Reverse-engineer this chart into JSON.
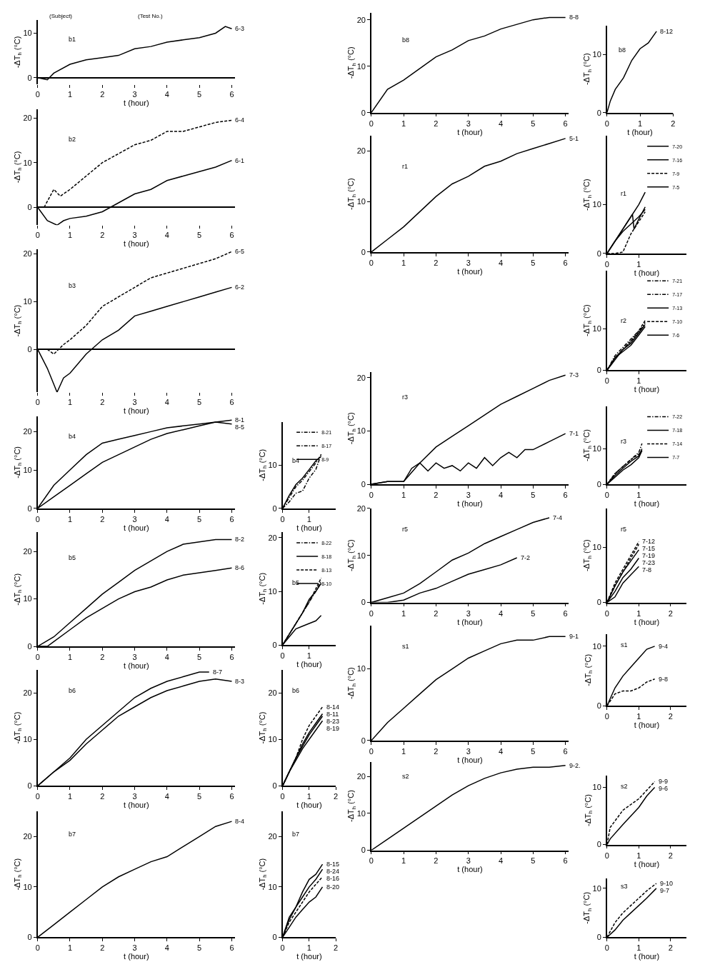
{
  "chart_data": [
    {
      "type": "line",
      "title": "b1",
      "annotations": [
        "(Subject)",
        "(Test No.)"
      ],
      "xlabel": "t (hour)",
      "ylabel": "-ΔT$_{h}$ (°C)",
      "xlim": [
        0,
        6.1
      ],
      "xticks": [
        0,
        1,
        2,
        3,
        4,
        5,
        6
      ],
      "ylim": [
        -1.5,
        13
      ],
      "yticks": [
        0,
        10
      ],
      "series": [
        {
          "name": "6-3",
          "color": "#000000",
          "line_style": "solid",
          "x": [
            0,
            0.3,
            0.5,
            1,
            1.5,
            2,
            2.5,
            3,
            3.5,
            4,
            4.5,
            5,
            5.5,
            5.8,
            6
          ],
          "values": [
            0,
            -0.5,
            1,
            3,
            4,
            4.5,
            5,
            6.5,
            7,
            8,
            8.5,
            9,
            10,
            11.5,
            11
          ]
        }
      ]
    },
    {
      "type": "line",
      "title": "b2",
      "xlabel": "t (hour)",
      "ylabel": "-ΔT$_{h}$ (°C)",
      "xlim": [
        0,
        6.1
      ],
      "xticks": [
        0,
        1,
        2,
        3,
        4,
        5,
        6
      ],
      "ylim": [
        -4,
        22
      ],
      "yticks": [
        0,
        10,
        20
      ],
      "series": [
        {
          "name": "6-4",
          "color": "#000000",
          "line_style": "dashed",
          "x": [
            0.2,
            0.5,
            0.7,
            1,
            1.5,
            2,
            2.5,
            3,
            3.5,
            4,
            4.5,
            5,
            5.5,
            6
          ],
          "values": [
            0,
            4,
            2.5,
            4,
            7,
            10,
            12,
            14,
            15,
            17,
            17,
            18,
            19,
            19.5
          ]
        },
        {
          "name": "6-1",
          "color": "#000000",
          "line_style": "solid",
          "x": [
            0,
            0.3,
            0.6,
            0.8,
            1,
            1.5,
            2,
            2.5,
            3,
            3.5,
            4,
            4.5,
            5,
            5.5,
            6
          ],
          "values": [
            0,
            -3,
            -4,
            -3,
            -2.5,
            -2,
            -1,
            1,
            3,
            4,
            6,
            7,
            8,
            9,
            10.5
          ]
        }
      ]
    },
    {
      "type": "line",
      "title": "b3",
      "xlabel": "t (hour)",
      "ylabel": "-ΔT$_{h}$ (°C)",
      "xlim": [
        0,
        6.1
      ],
      "xticks": [
        0,
        1,
        2,
        3,
        4,
        5,
        6
      ],
      "ylim": [
        -9,
        21
      ],
      "yticks": [
        0,
        10,
        20
      ],
      "series": [
        {
          "name": "6-5",
          "color": "#000000",
          "line_style": "dashed",
          "x": [
            0.3,
            0.5,
            0.8,
            1,
            1.5,
            2,
            2.5,
            3,
            3.5,
            4,
            4.5,
            5,
            5.5,
            6
          ],
          "values": [
            0,
            -1,
            1,
            2,
            5,
            9,
            11,
            13,
            15,
            16,
            17,
            18,
            19,
            20.5
          ]
        },
        {
          "name": "6-2",
          "color": "#000000",
          "line_style": "solid",
          "x": [
            0,
            0.3,
            0.6,
            0.8,
            1,
            1.5,
            2,
            2.5,
            3,
            3.5,
            4,
            4.5,
            5,
            5.5,
            6
          ],
          "values": [
            0,
            -4,
            -9,
            -6,
            -5,
            -1,
            2,
            4,
            7,
            8,
            9,
            10,
            11,
            12,
            13
          ]
        }
      ]
    },
    {
      "type": "line",
      "title": "b4",
      "xlabel": "t (hour)",
      "ylabel": "-ΔT$_{h}$ (°C)",
      "xlim": [
        0,
        6.1
      ],
      "xticks": [
        0,
        1,
        2,
        3,
        4,
        5,
        6
      ],
      "ylim": [
        0,
        24
      ],
      "yticks": [
        0,
        10,
        20
      ],
      "series": [
        {
          "name": "8-5",
          "color": "#000000",
          "line_style": "solid",
          "x": [
            0,
            0.5,
            1,
            1.5,
            2,
            2.5,
            3,
            3.5,
            4,
            4.5,
            5,
            5.5,
            6
          ],
          "values": [
            0,
            6,
            10,
            14,
            17,
            18,
            19,
            20,
            21,
            21.5,
            22,
            22.5,
            22
          ]
        },
        {
          "name": "8-1",
          "color": "#000000",
          "line_style": "solid",
          "x": [
            0,
            0.5,
            1,
            1.5,
            2,
            2.5,
            3,
            3.5,
            4,
            4.5,
            5,
            5.5,
            6
          ],
          "values": [
            0,
            3,
            6,
            9,
            12,
            14,
            16,
            18,
            19.5,
            20.5,
            21.5,
            22.5,
            23
          ]
        }
      ]
    },
    {
      "type": "line",
      "title": "b5",
      "xlabel": "t (hour)",
      "ylabel": "-ΔT$_{h}$ (°C)",
      "xlim": [
        0,
        6.1
      ],
      "xticks": [
        0,
        1,
        2,
        3,
        4,
        5,
        6
      ],
      "ylim": [
        0,
        24
      ],
      "yticks": [
        0,
        10,
        20
      ],
      "series": [
        {
          "name": "8-2",
          "color": "#000000",
          "line_style": "solid",
          "x": [
            0,
            0.5,
            1,
            1.5,
            2,
            2.5,
            3,
            3.5,
            4,
            4.5,
            5,
            5.5,
            6
          ],
          "values": [
            0,
            2,
            5,
            8,
            11,
            13.5,
            16,
            18,
            20,
            21.5,
            22,
            22.5,
            22.5
          ]
        },
        {
          "name": "8-6",
          "color": "#000000",
          "line_style": "solid",
          "x": [
            0,
            0.3,
            0.5,
            1,
            1.5,
            2,
            2.5,
            3,
            3.5,
            4,
            4.5,
            5,
            5.5,
            6
          ],
          "values": [
            0,
            0,
            1,
            3.5,
            6,
            8,
            10,
            11.5,
            12.5,
            14,
            15,
            15.5,
            16,
            16.5
          ]
        }
      ]
    },
    {
      "type": "line",
      "title": "b6",
      "xlabel": "t (hour)",
      "ylabel": "-ΔT$_{h}$ (°C)",
      "xlim": [
        0,
        6.1
      ],
      "xticks": [
        0,
        1,
        2,
        3,
        4,
        5,
        6
      ],
      "ylim": [
        0,
        25
      ],
      "yticks": [
        0,
        10,
        20
      ],
      "series": [
        {
          "name": "8-7",
          "color": "#000000",
          "line_style": "solid",
          "x": [
            0,
            0.5,
            1,
            1.5,
            2,
            2.5,
            3,
            3.5,
            4,
            4.5,
            5,
            5.3
          ],
          "values": [
            0,
            3,
            6,
            10,
            13,
            16,
            19,
            21,
            22.5,
            23.5,
            24.5,
            24.5
          ]
        },
        {
          "name": "8-3",
          "color": "#000000",
          "line_style": "solid",
          "x": [
            0,
            0.5,
            1,
            1.5,
            2,
            2.5,
            3,
            3.5,
            4,
            4.5,
            5,
            5.5,
            6
          ],
          "values": [
            0,
            3,
            5.5,
            9,
            12,
            15,
            17,
            19,
            20.5,
            21.5,
            22.5,
            23,
            22.5
          ]
        }
      ]
    },
    {
      "type": "line",
      "title": "b7",
      "xlabel": "t (hour)",
      "ylabel": "-ΔT$_{h}$ (°C)",
      "xlim": [
        0,
        6.1
      ],
      "xticks": [
        0,
        1,
        2,
        3,
        4,
        5,
        6
      ],
      "ylim": [
        0,
        25
      ],
      "yticks": [
        0,
        10,
        20
      ],
      "series": [
        {
          "name": "8-4",
          "color": "#000000",
          "line_style": "solid",
          "x": [
            0,
            0.5,
            1,
            1.5,
            2,
            2.5,
            3,
            3.5,
            4,
            4.5,
            5,
            5.5,
            6
          ],
          "values": [
            0,
            2.5,
            5,
            7.5,
            10,
            12,
            13.5,
            15,
            16,
            18,
            20,
            22,
            23
          ]
        }
      ]
    },
    {
      "type": "line",
      "title": "b4",
      "xlabel": "t (hour)",
      "ylabel": "-ΔT$_{h}$ (°C)",
      "xlim": [
        0,
        2
      ],
      "xticks": [
        0,
        1
      ],
      "ylim": [
        0,
        20
      ],
      "yticks": [
        0,
        10
      ],
      "legend": "top right",
      "series": [
        {
          "name": "8-21",
          "color": "#000000",
          "line_style": "dashdot",
          "x": [
            0,
            0.25,
            0.5,
            0.75,
            1,
            1.25,
            1.45
          ],
          "values": [
            0,
            1.5,
            3.5,
            4,
            7,
            9,
            12.5
          ]
        },
        {
          "name": "8-17",
          "color": "#000000",
          "line_style": "dashdot",
          "x": [
            0,
            0.25,
            0.5,
            0.75,
            1,
            1.25,
            1.45
          ],
          "values": [
            0,
            2.5,
            5,
            6.5,
            8.5,
            10.5,
            12.5
          ]
        },
        {
          "name": "8-9",
          "color": "#000000",
          "line_style": "solid",
          "x": [
            0,
            0.25,
            0.5,
            0.75,
            1,
            1.25,
            1.45
          ],
          "values": [
            0,
            3,
            5.5,
            7,
            9,
            11,
            12
          ]
        }
      ]
    },
    {
      "type": "line",
      "title": "b5",
      "xlabel": "t (hour)",
      "ylabel": "-ΔT$_{h}$ (°C)",
      "xlim": [
        0,
        2
      ],
      "xticks": [
        0,
        1
      ],
      "ylim": [
        0,
        21
      ],
      "yticks": [
        0,
        10,
        20
      ],
      "legend": "top right",
      "series": [
        {
          "name": "8-22",
          "color": "#000000",
          "line_style": "dashdot",
          "x": [
            0,
            0.25,
            0.5,
            0.75,
            1,
            1.25,
            1.45
          ],
          "values": [
            0,
            2,
            4,
            6,
            8,
            10,
            12
          ]
        },
        {
          "name": "8-18",
          "color": "#000000",
          "line_style": "solid",
          "x": [
            0,
            0.25,
            0.5,
            0.75,
            1,
            1.25,
            1.45
          ],
          "values": [
            0,
            2,
            4,
            6,
            8.5,
            10,
            11.5
          ]
        },
        {
          "name": "8-13",
          "color": "#000000",
          "line_style": "dashed",
          "x": [
            0,
            0.25,
            0.5,
            0.75,
            1,
            1.25,
            1.45
          ],
          "values": [
            0,
            2,
            4,
            6,
            8,
            10.5,
            12.5
          ]
        },
        {
          "name": "8-10",
          "color": "#000000",
          "line_style": "solid",
          "x": [
            0,
            0.25,
            0.5,
            0.75,
            1,
            1.25,
            1.45
          ],
          "values": [
            0,
            1.5,
            3,
            3.5,
            4,
            4.5,
            5.5
          ]
        }
      ]
    },
    {
      "type": "line",
      "title": "b6",
      "xlabel": "t (hour)",
      "ylabel": "-ΔT$_{h}$ (°C)",
      "xlim": [
        0,
        2
      ],
      "xticks": [
        0,
        1,
        2
      ],
      "ylim": [
        0,
        25
      ],
      "yticks": [
        0,
        10,
        20
      ],
      "series": [
        {
          "name": "8-14",
          "color": "#000000",
          "line_style": "dashed",
          "x": [
            0,
            0.25,
            0.5,
            0.75,
            1,
            1.25,
            1.5
          ],
          "values": [
            0,
            3,
            6,
            10,
            13,
            15,
            17
          ]
        },
        {
          "name": "8-11",
          "color": "#000000",
          "line_style": "solid",
          "x": [
            0,
            0.25,
            0.5,
            0.75,
            1,
            1.25,
            1.5
          ],
          "values": [
            0,
            3,
            6,
            9,
            11.5,
            13.5,
            15.5
          ]
        },
        {
          "name": "8-23",
          "color": "#000000",
          "line_style": "solid",
          "x": [
            0,
            0.25,
            0.5,
            0.75,
            1,
            1.25,
            1.5
          ],
          "values": [
            0,
            3,
            6,
            8.5,
            11,
            13,
            15
          ]
        },
        {
          "name": "8-19",
          "color": "#000000",
          "line_style": "solid",
          "x": [
            0,
            0.25,
            0.5,
            0.75,
            1,
            1.25,
            1.5
          ],
          "values": [
            0,
            3,
            5.5,
            8,
            10,
            12,
            14
          ]
        }
      ]
    },
    {
      "type": "line",
      "title": "b7",
      "xlabel": "t (hour)",
      "ylabel": "-ΔT$_{h}$ (°C)",
      "xlim": [
        0,
        2
      ],
      "xticks": [
        0,
        1,
        2
      ],
      "ylim": [
        0,
        25
      ],
      "yticks": [
        0,
        10,
        20
      ],
      "series": [
        {
          "name": "8-15",
          "color": "#000000",
          "line_style": "solid",
          "x": [
            0,
            0.25,
            0.5,
            0.75,
            1,
            1.25,
            1.5
          ],
          "values": [
            0,
            4,
            6,
            9,
            11.5,
            12.5,
            14.5
          ]
        },
        {
          "name": "8-24",
          "color": "#000000",
          "line_style": "solid",
          "x": [
            0,
            0.25,
            0.5,
            0.75,
            1,
            1.25,
            1.5
          ],
          "values": [
            0,
            3.5,
            6,
            8,
            10,
            11.5,
            13.5
          ]
        },
        {
          "name": "8-16",
          "color": "#000000",
          "line_style": "dashed",
          "x": [
            0,
            0.25,
            0.5,
            0.75,
            1,
            1.25,
            1.5
          ],
          "values": [
            0,
            3,
            5,
            7,
            9,
            10.5,
            12
          ]
        },
        {
          "name": "8-20",
          "color": "#000000",
          "line_style": "solid",
          "x": [
            0,
            0.25,
            0.5,
            0.75,
            1,
            1.25,
            1.5
          ],
          "values": [
            0,
            2,
            4,
            5.5,
            7,
            8,
            10
          ]
        }
      ]
    },
    {
      "type": "line",
      "title": "b8",
      "xlabel": "t (hour)",
      "ylabel": "-ΔT$_{h}$ (°C)",
      "xlim": [
        0,
        6.1
      ],
      "xticks": [
        0,
        1,
        2,
        3,
        4,
        5,
        6
      ],
      "ylim": [
        0,
        21.5
      ],
      "yticks": [
        0,
        10,
        20
      ],
      "series": [
        {
          "name": "8-8",
          "color": "#000000",
          "line_style": "solid",
          "x": [
            0,
            0.5,
            1,
            1.5,
            2,
            2.5,
            3,
            3.5,
            4,
            4.5,
            5,
            5.5,
            6
          ],
          "values": [
            0,
            5,
            7,
            9.5,
            12,
            13.5,
            15.5,
            16.5,
            18,
            19,
            20,
            20.5,
            20.5
          ]
        }
      ]
    },
    {
      "type": "line",
      "title": "r1",
      "xlabel": "t (hour)",
      "ylabel": "-ΔT$_{h}$ (°C)",
      "xlim": [
        0,
        6.1
      ],
      "xticks": [
        0,
        1,
        2,
        3,
        4,
        5,
        6
      ],
      "ylim": [
        0,
        23
      ],
      "yticks": [
        0,
        10,
        20
      ],
      "series": [
        {
          "name": "5-1",
          "color": "#000000",
          "line_style": "solid",
          "x": [
            0,
            0.5,
            1,
            1.5,
            2,
            2.5,
            3,
            3.5,
            4,
            4.5,
            5,
            5.5,
            6
          ],
          "values": [
            0,
            2.5,
            5,
            8,
            11,
            13.5,
            15,
            17,
            18,
            19.5,
            20.5,
            21.5,
            22.5
          ]
        }
      ]
    },
    {
      "type": "line",
      "title": "r3",
      "xlabel": "t (hour)",
      "ylabel": "-ΔT$_{h}$ (°C)",
      "xlim": [
        0,
        6.1
      ],
      "xticks": [
        0,
        1,
        2,
        3,
        4,
        5,
        6
      ],
      "ylim": [
        0,
        21
      ],
      "yticks": [
        0,
        10,
        20
      ],
      "series": [
        {
          "name": "7-3",
          "color": "#000000",
          "line_style": "solid",
          "x": [
            0,
            0.5,
            1,
            1.5,
            2,
            2.5,
            3,
            3.5,
            4,
            4.5,
            5,
            5.5,
            6
          ],
          "values": [
            0,
            0.5,
            0.5,
            4,
            7,
            9,
            11,
            13,
            15,
            16.5,
            18,
            19.5,
            20.5
          ]
        },
        {
          "name": "7-1",
          "color": "#000000",
          "line_style": "solid",
          "x": [
            0,
            0.5,
            1,
            1.25,
            1.5,
            1.75,
            2,
            2.25,
            2.5,
            2.75,
            3,
            3.25,
            3.5,
            3.75,
            4,
            4.25,
            4.5,
            4.75,
            5,
            5.5,
            6
          ],
          "values": [
            0,
            0.5,
            0.5,
            3,
            4,
            2.5,
            4,
            3,
            3.5,
            2.5,
            4,
            3,
            5,
            3.5,
            5,
            6,
            5,
            6.5,
            6.5,
            8,
            9.5
          ]
        }
      ]
    },
    {
      "type": "line",
      "title": "r5",
      "xlabel": "t (hour)",
      "ylabel": "-ΔT$_{h}$ (°C)",
      "xlim": [
        0,
        6.1
      ],
      "xticks": [
        0,
        1,
        2,
        3,
        4,
        5,
        6
      ],
      "ylim": [
        0,
        20
      ],
      "yticks": [
        0,
        10,
        20
      ],
      "series": [
        {
          "name": "7-4",
          "color": "#000000",
          "line_style": "solid",
          "x": [
            0,
            0.5,
            1,
            1.5,
            2,
            2.5,
            3,
            3.5,
            4,
            4.5,
            5,
            5.5
          ],
          "values": [
            0,
            1,
            2,
            4,
            6.5,
            9,
            10.5,
            12.5,
            14,
            15.5,
            17,
            18
          ]
        },
        {
          "name": "7-2",
          "color": "#000000",
          "line_style": "solid",
          "x": [
            0,
            0.5,
            1,
            1.5,
            2,
            2.5,
            3,
            3.5,
            4,
            4.5
          ],
          "values": [
            0,
            0,
            0.5,
            2,
            3,
            4.5,
            6,
            7,
            8,
            9.5
          ]
        }
      ]
    },
    {
      "type": "line",
      "title": "s1",
      "xlabel": "t (hour)",
      "ylabel": "-ΔT$_{h}$ (°C)",
      "xlim": [
        0,
        6.1
      ],
      "xticks": [
        0,
        1,
        2,
        3,
        4,
        5,
        6
      ],
      "ylim": [
        0,
        16
      ],
      "yticks": [
        0,
        10
      ],
      "series": [
        {
          "name": "9-1",
          "color": "#000000",
          "line_style": "solid",
          "x": [
            0,
            0.5,
            1,
            1.5,
            2,
            2.5,
            3,
            3.5,
            4,
            4.5,
            5,
            5.5,
            6
          ],
          "values": [
            0,
            2.5,
            4.5,
            6.5,
            8.5,
            10,
            11.5,
            12.5,
            13.5,
            14,
            14,
            14.5,
            14.5
          ]
        }
      ]
    },
    {
      "type": "line",
      "title": "s2",
      "xlabel": "t (hour)",
      "ylabel": "-ΔT$_{h}$ (°C)",
      "xlim": [
        0,
        6.1
      ],
      "xticks": [
        0,
        1,
        2,
        3,
        4,
        5,
        6
      ],
      "ylim": [
        0,
        24
      ],
      "yticks": [
        0,
        10,
        20
      ],
      "series": [
        {
          "name": "9-2.",
          "color": "#000000",
          "line_style": "solid",
          "x": [
            0,
            0.5,
            1,
            1.5,
            2,
            2.5,
            3,
            3.5,
            4,
            4.5,
            5,
            5.5,
            6
          ],
          "values": [
            0,
            3,
            6,
            9,
            12,
            15,
            17.5,
            19.5,
            21,
            22,
            22.5,
            22.5,
            23
          ]
        }
      ]
    },
    {
      "type": "line",
      "title": "b8",
      "xlabel": "t (hour)",
      "ylabel": "-ΔT$_{h}$ (°C)",
      "xlim": [
        0,
        2
      ],
      "xticks": [
        0,
        1,
        2
      ],
      "ylim": [
        0,
        15
      ],
      "yticks": [
        0,
        10
      ],
      "series": [
        {
          "name": "8-12",
          "color": "#000000",
          "line_style": "solid",
          "x": [
            0,
            0.1,
            0.25,
            0.5,
            0.75,
            1,
            1.25,
            1.5
          ],
          "values": [
            0,
            2,
            4,
            6,
            9,
            11,
            12,
            14
          ]
        }
      ]
    },
    {
      "type": "line",
      "title": "r1",
      "xlabel": "t (hour)",
      "ylabel": "-ΔT$_{h}$ (°C)",
      "xlim": [
        0,
        2.5
      ],
      "xticks": [
        0,
        1
      ],
      "ylim": [
        0,
        24
      ],
      "yticks": [
        0,
        10
      ],
      "legend": "top right",
      "series": [
        {
          "name": "7-20",
          "color": "#000000",
          "line_style": "solid",
          "x": [
            0,
            0.25,
            0.5,
            0.75,
            1,
            1.2
          ],
          "values": [
            0,
            2.5,
            5,
            7.5,
            10,
            12.5
          ]
        },
        {
          "name": "7-16",
          "color": "#000000",
          "line_style": "solid",
          "x": [
            0,
            0.3,
            0.6,
            0.8,
            0.85,
            1,
            1.2
          ],
          "values": [
            0,
            3,
            6,
            8,
            5,
            7,
            9.5
          ]
        },
        {
          "name": "7-9",
          "color": "#000000",
          "line_style": "dashed",
          "x": [
            0,
            0.25,
            0.5,
            0.75,
            1,
            1.2
          ],
          "values": [
            0,
            0,
            0.3,
            4,
            6.5,
            8.5
          ]
        },
        {
          "name": "7-5",
          "color": "#000000",
          "line_style": "solid",
          "x": [
            0,
            0.25,
            0.5,
            0.75,
            1,
            1.2
          ],
          "values": [
            0,
            2.5,
            4.5,
            6,
            7.5,
            9
          ]
        }
      ]
    },
    {
      "type": "line",
      "title": "r2",
      "xlabel": "t (hour)",
      "ylabel": "-ΔT$_{h}$ (°C)",
      "xlim": [
        0,
        2.5
      ],
      "xticks": [
        0,
        1
      ],
      "ylim": [
        0,
        24
      ],
      "yticks": [
        0,
        10
      ],
      "legend": "top right",
      "series": [
        {
          "name": "7-21",
          "color": "#000000",
          "line_style": "dashdot",
          "x": [
            0,
            0.25,
            0.5,
            0.75,
            1,
            1.2
          ],
          "values": [
            0,
            3,
            5,
            7,
            9,
            11.5
          ]
        },
        {
          "name": "7-17",
          "color": "#000000",
          "line_style": "dashdot",
          "x": [
            0,
            0.25,
            0.5,
            0.75,
            1,
            1.2
          ],
          "values": [
            0,
            3.5,
            5.5,
            7.5,
            9.5,
            11
          ]
        },
        {
          "name": "7-13",
          "color": "#000000",
          "line_style": "solid",
          "x": [
            0,
            0.25,
            0.5,
            0.75,
            1,
            1.2
          ],
          "values": [
            0,
            2.5,
            5,
            6.5,
            9,
            11
          ]
        },
        {
          "name": "7-10",
          "color": "#000000",
          "line_style": "dashed",
          "x": [
            0,
            0.25,
            0.5,
            0.75,
            1,
            1.2
          ],
          "values": [
            0,
            3,
            5,
            7,
            9.5,
            12
          ]
        },
        {
          "name": "7-6",
          "color": "#000000",
          "line_style": "solid",
          "x": [
            0,
            0.25,
            0.5,
            0.75,
            1,
            1.2
          ],
          "values": [
            0,
            3,
            4.5,
            6,
            8.5,
            10.5
          ]
        }
      ]
    },
    {
      "type": "line",
      "title": "r3",
      "xlabel": "t (hour)",
      "ylabel": "-ΔT$_{h}$ (°C)",
      "xlim": [
        0,
        2.5
      ],
      "xticks": [
        0,
        1
      ],
      "ylim": [
        0,
        22
      ],
      "yticks": [
        0,
        10
      ],
      "legend": "top right",
      "series": [
        {
          "name": "7-22",
          "color": "#000000",
          "line_style": "dashdot",
          "x": [
            0,
            0.25,
            0.5,
            0.75,
            1,
            1.1
          ],
          "values": [
            0,
            3,
            5,
            7,
            9,
            11.5
          ]
        },
        {
          "name": "7-18",
          "color": "#000000",
          "line_style": "solid",
          "x": [
            0,
            0.25,
            0.5,
            0.75,
            1,
            1.1
          ],
          "values": [
            0,
            2.5,
            4.5,
            6.5,
            8,
            10
          ]
        },
        {
          "name": "7-14",
          "color": "#000000",
          "line_style": "dashed",
          "x": [
            0,
            0.25,
            0.5,
            0.75,
            1,
            1.1
          ],
          "values": [
            0,
            3,
            5,
            7,
            8.5,
            9.5
          ]
        },
        {
          "name": "7-7",
          "color": "#000000",
          "line_style": "solid",
          "x": [
            0,
            0.25,
            0.5,
            0.75,
            1,
            1.1
          ],
          "values": [
            0,
            2,
            4,
            5.5,
            7.5,
            9.5
          ]
        }
      ]
    },
    {
      "type": "line",
      "title": "r5",
      "xlabel": "t (hour)",
      "ylabel": "-ΔT$_{h}$ (°C)",
      "xlim": [
        0,
        2.5
      ],
      "xticks": [
        0,
        1,
        2
      ],
      "ylim": [
        0,
        17
      ],
      "yticks": [
        0,
        10
      ],
      "series": [
        {
          "name": "7-12",
          "color": "#000000",
          "line_style": "dashed",
          "x": [
            0,
            0.25,
            0.5,
            0.75,
            1
          ],
          "values": [
            0,
            3.5,
            6,
            8.5,
            11
          ]
        },
        {
          "name": "7-15",
          "color": "#000000",
          "line_style": "dashed",
          "x": [
            0,
            0.25,
            0.5,
            0.75,
            1
          ],
          "values": [
            0,
            3,
            5.5,
            8,
            10.5
          ]
        },
        {
          "name": "7-19",
          "color": "#000000",
          "line_style": "solid",
          "x": [
            0,
            0.25,
            0.5,
            0.75,
            1
          ],
          "values": [
            0,
            3,
            5.5,
            7.5,
            9.5
          ]
        },
        {
          "name": "7-23",
          "color": "#000000",
          "line_style": "solid",
          "x": [
            0,
            0.25,
            0.5,
            0.75,
            1
          ],
          "values": [
            0,
            2,
            4.5,
            6,
            8
          ]
        },
        {
          "name": "7-8",
          "color": "#000000",
          "line_style": "solid",
          "x": [
            0,
            0.25,
            0.5,
            0.75,
            1
          ],
          "values": [
            0,
            1,
            3.5,
            5,
            6.5
          ]
        }
      ]
    },
    {
      "type": "line",
      "title": "s1",
      "xlabel": "t (hour)",
      "ylabel": "-ΔT$_{h}$ (°C)",
      "xlim": [
        0,
        2.5
      ],
      "xticks": [
        0,
        1,
        2
      ],
      "ylim": [
        0,
        12
      ],
      "yticks": [
        0,
        10
      ],
      "series": [
        {
          "name": "9-4",
          "color": "#000000",
          "line_style": "solid",
          "x": [
            0,
            0.25,
            0.5,
            0.75,
            1,
            1.25,
            1.5
          ],
          "values": [
            0,
            3,
            5,
            6.5,
            8,
            9.5,
            10
          ]
        },
        {
          "name": "9-8",
          "color": "#000000",
          "line_style": "dashed",
          "x": [
            0,
            0.25,
            0.5,
            0.75,
            1,
            1.25,
            1.5
          ],
          "values": [
            0,
            2,
            2.5,
            2.5,
            3,
            4,
            4.5
          ]
        }
      ]
    },
    {
      "type": "line",
      "title": "s2",
      "xlabel": "t (hour)",
      "ylabel": "-ΔT$_{h}$ (°C)",
      "xlim": [
        0,
        2.5
      ],
      "xticks": [
        0,
        1,
        2
      ],
      "ylim": [
        0,
        12
      ],
      "yticks": [
        0,
        10
      ],
      "series": [
        {
          "name": "9-9",
          "color": "#000000",
          "line_style": "dashed",
          "x": [
            0,
            0.1,
            0.5,
            0.75,
            1,
            1.25,
            1.5
          ],
          "values": [
            0,
            3,
            6,
            7,
            8,
            9.5,
            11
          ]
        },
        {
          "name": "9-6",
          "color": "#000000",
          "line_style": "solid",
          "x": [
            0,
            0.1,
            0.5,
            0.75,
            1,
            1.25,
            1.5
          ],
          "values": [
            0,
            1,
            3.5,
            5,
            6.5,
            8.5,
            10
          ]
        }
      ]
    },
    {
      "type": "line",
      "title": "s3",
      "xlabel": "t (hour)",
      "ylabel": "-ΔT$_{h}$ (°C)",
      "xlim": [
        0,
        2.5
      ],
      "xticks": [
        0,
        1,
        2
      ],
      "ylim": [
        0,
        12
      ],
      "yticks": [
        0,
        10
      ],
      "series": [
        {
          "name": "9-10",
          "color": "#000000",
          "line_style": "dashed",
          "x": [
            0,
            0.25,
            0.5,
            0.75,
            1,
            1.25,
            1.55
          ],
          "values": [
            0,
            3,
            5,
            6.5,
            8,
            9.5,
            11
          ]
        },
        {
          "name": "9-7",
          "color": "#000000",
          "line_style": "solid",
          "x": [
            0,
            0.25,
            0.5,
            0.75,
            1,
            1.25,
            1.55
          ],
          "values": [
            0,
            1.5,
            3.5,
            5,
            6.5,
            8,
            10
          ]
        }
      ]
    }
  ]
}
